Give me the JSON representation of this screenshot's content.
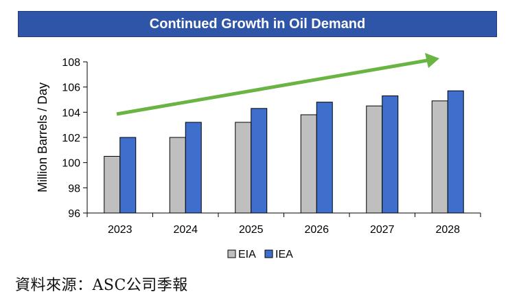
{
  "chart_data": {
    "type": "bar",
    "title": "Continued Growth in Oil Demand",
    "xlabel": "",
    "ylabel": "Million Barrels / Day",
    "categories": [
      "2023",
      "2024",
      "2025",
      "2026",
      "2027",
      "2028"
    ],
    "series": [
      {
        "name": "EIA",
        "color": "#bfbfbf",
        "values": [
          100.5,
          102.0,
          103.2,
          103.8,
          104.5,
          104.9
        ]
      },
      {
        "name": "IEA",
        "color": "#3f6fcd",
        "values": [
          102.0,
          103.2,
          104.3,
          104.8,
          105.3,
          105.7
        ]
      }
    ],
    "ylim": [
      96,
      108
    ],
    "yticks": [
      96,
      98,
      100,
      102,
      104,
      106,
      108
    ],
    "legend_position": "bottom",
    "annotation": "upward trend arrow",
    "arrow_color": "#6ab443"
  },
  "source_note": "資料來源：ASC公司季報"
}
